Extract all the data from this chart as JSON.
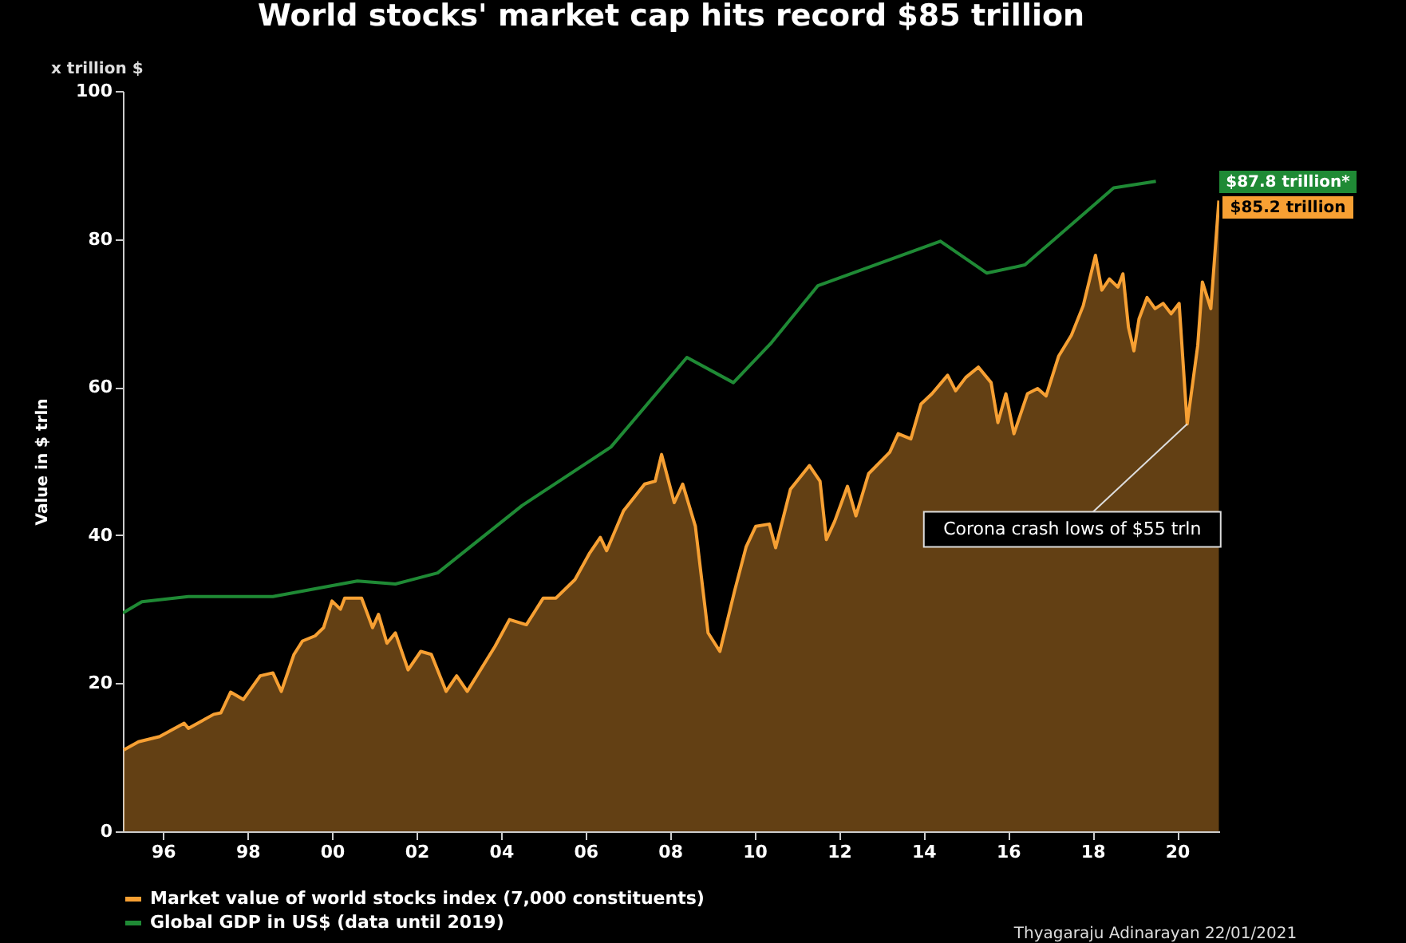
{
  "chart_data": {
    "type": "line",
    "title": "World stocks' market cap hits record $85 trillion",
    "ylabel": "Value in $ trln",
    "xlim": [
      1995.05,
      2021.0
    ],
    "xticks": [
      {
        "value": 1996,
        "label": "96"
      },
      {
        "value": 1998,
        "label": "98"
      },
      {
        "value": 2000,
        "label": "00"
      },
      {
        "value": 2002,
        "label": "02"
      },
      {
        "value": 2004,
        "label": "04"
      },
      {
        "value": 2006,
        "label": "06"
      },
      {
        "value": 2008,
        "label": "08"
      },
      {
        "value": 2010,
        "label": "10"
      },
      {
        "value": 2012,
        "label": "12"
      },
      {
        "value": 2014,
        "label": "14"
      },
      {
        "value": 2016,
        "label": "16"
      },
      {
        "value": 2018,
        "label": "18"
      },
      {
        "value": 2020,
        "label": "20"
      }
    ],
    "ylim": [
      0,
      100
    ],
    "yticks": [
      0,
      20,
      40,
      60,
      80,
      100
    ],
    "grid": false,
    "legend": "bottom",
    "series": [
      {
        "name": "Market value of world stocks index (7,000 constituents)",
        "type": "area",
        "color": "#f7a033",
        "x": [
          1995.07,
          1995.42,
          1995.92,
          1996.5,
          1996.6,
          1997.2,
          1997.37,
          1997.6,
          1997.9,
          1998.3,
          1998.6,
          1998.8,
          1999.1,
          1999.3,
          1999.6,
          1999.8,
          2000.0,
          2000.2,
          2000.3,
          2000.7,
          2000.96,
          2001.1,
          2001.3,
          2001.5,
          2001.8,
          2002.1,
          2002.35,
          2002.7,
          2002.95,
          2003.2,
          2003.86,
          2004.2,
          2004.6,
          2005.0,
          2005.3,
          2005.75,
          2006.1,
          2006.35,
          2006.5,
          2006.9,
          2007.4,
          2007.65,
          2007.8,
          2008.1,
          2008.3,
          2008.6,
          2008.9,
          2009.18,
          2009.53,
          2009.8,
          2010.03,
          2010.35,
          2010.5,
          2010.85,
          2011.3,
          2011.55,
          2011.7,
          2011.9,
          2012.2,
          2012.4,
          2012.7,
          2013.2,
          2013.4,
          2013.7,
          2013.94,
          2014.2,
          2014.57,
          2014.76,
          2015.0,
          2015.3,
          2015.6,
          2015.76,
          2015.95,
          2016.14,
          2016.46,
          2016.7,
          2016.9,
          2017.2,
          2017.5,
          2017.78,
          2018.07,
          2018.22,
          2018.4,
          2018.6,
          2018.72,
          2018.85,
          2018.98,
          2019.1,
          2019.29,
          2019.48,
          2019.67,
          2019.86,
          2020.05,
          2020.24,
          2020.49,
          2020.6,
          2020.8,
          2020.99
        ],
        "values": [
          11.0,
          12.1,
          12.8,
          14.6,
          13.9,
          15.8,
          16.0,
          18.8,
          17.8,
          21.0,
          21.4,
          18.9,
          23.9,
          25.7,
          26.4,
          27.5,
          31.1,
          30.0,
          31.5,
          31.5,
          27.5,
          29.3,
          25.4,
          26.8,
          21.8,
          24.3,
          23.9,
          18.9,
          21.0,
          18.9,
          25.0,
          28.6,
          27.9,
          31.5,
          31.5,
          34.0,
          37.6,
          39.7,
          37.9,
          43.3,
          46.9,
          47.3,
          50.9,
          44.4,
          46.9,
          41.2,
          26.8,
          24.3,
          32.5,
          38.4,
          41.2,
          41.5,
          38.3,
          46.2,
          49.4,
          47.3,
          39.4,
          41.9,
          46.6,
          42.6,
          48.3,
          51.2,
          53.7,
          53.0,
          57.7,
          59.1,
          61.6,
          59.5,
          61.3,
          62.7,
          60.6,
          55.2,
          59.1,
          53.7,
          59.1,
          59.8,
          58.8,
          64.2,
          67.0,
          71.0,
          77.8,
          73.1,
          74.6,
          73.5,
          75.3,
          68.1,
          64.9,
          69.2,
          72.1,
          70.6,
          71.3,
          69.9,
          71.3,
          55.0,
          65.6,
          74.2,
          70.6,
          85.2
        ]
      },
      {
        "name": "Global GDP in US$ (data until 2019)",
        "color": "#1f8a35",
        "x": [
          1995.05,
          1995.5,
          1996.6,
          1998.6,
          2000.6,
          2001.5,
          2002.5,
          2004.5,
          2006.6,
          2008.4,
          2009.5,
          2010.4,
          2011.5,
          2014.4,
          2015.5,
          2016.4,
          2018.5,
          2019.5
        ],
        "values": [
          29.5,
          31.0,
          31.7,
          31.7,
          33.8,
          33.4,
          34.9,
          44.0,
          51.9,
          64.0,
          60.6,
          66.0,
          73.7,
          79.7,
          75.4,
          76.5,
          86.9,
          87.8
        ]
      }
    ],
    "annotations": [
      {
        "text": "Corona crash lows of $55 trln",
        "x": 2020.24,
        "y": 55.0
      },
      "$87.8 trillion*",
      "$85.2 trillion",
      "x trillion $",
      "Thyagaraju Adinarayan 22/01/2021"
    ]
  }
}
